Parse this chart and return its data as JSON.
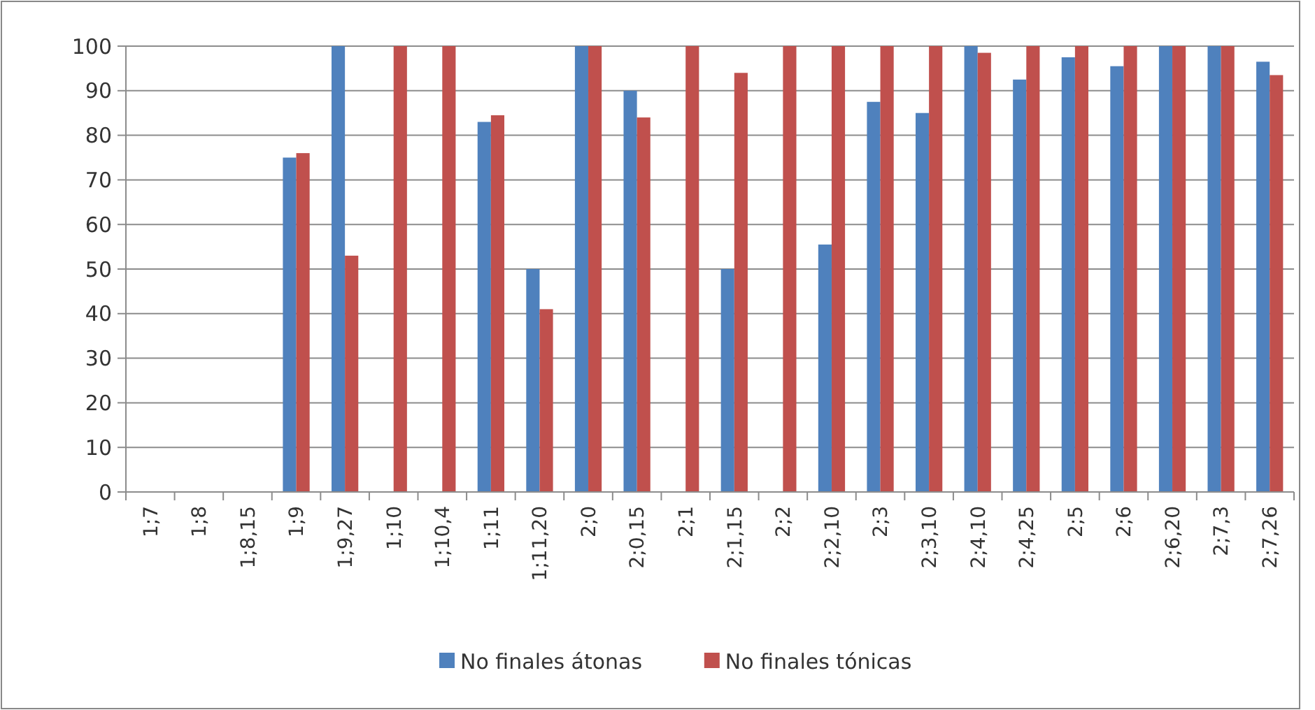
{
  "chart_data": {
    "type": "bar",
    "categories": [
      "1;7",
      "1;8",
      "1;8,15",
      "1;9",
      "1;9,27",
      "1;10",
      "1;10,4",
      "1;11",
      "1;11,20",
      "2;0",
      "2;0,15",
      "2;1",
      "2;1,15",
      "2;2",
      "2;2,10",
      "2;3",
      "2;3,10",
      "2;4,10",
      "2;4,25",
      "2;5",
      "2;6",
      "2;6,20",
      "2;7,3",
      "2;7,26"
    ],
    "series": [
      {
        "name": "No finales átonas",
        "color": "#4f81bd",
        "values": [
          null,
          null,
          null,
          75,
          100,
          null,
          null,
          83,
          50,
          100,
          90,
          null,
          50,
          null,
          55.5,
          87.5,
          85,
          100,
          92.5,
          97.5,
          95.5,
          100,
          100,
          96.5
        ]
      },
      {
        "name": "No finales tónicas",
        "color": "#c0504d",
        "values": [
          null,
          null,
          null,
          76,
          53,
          100,
          100,
          84.5,
          41,
          100,
          84,
          100,
          94,
          100,
          100,
          100,
          100,
          98.5,
          100,
          100,
          100,
          100,
          100,
          93.5
        ]
      }
    ],
    "ylim": [
      0,
      100
    ],
    "yticks": [
      0,
      10,
      20,
      30,
      40,
      50,
      60,
      70,
      80,
      90,
      100
    ],
    "grid": "y",
    "legend": "bottom"
  }
}
